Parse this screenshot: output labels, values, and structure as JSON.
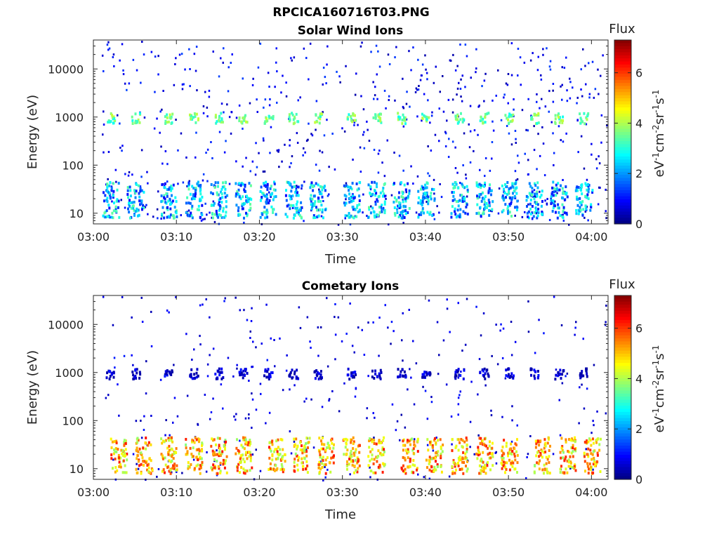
{
  "figure": {
    "title": "RPCICA160716T03.PNG"
  },
  "colorbar": {
    "title": "Flux",
    "ticks": [
      "0",
      "2",
      "4",
      "6"
    ],
    "range": [
      0,
      7.3
    ],
    "colormap": "jet"
  },
  "chart_data": [
    {
      "type": "heatmap",
      "title": "Solar Wind Ions",
      "xlabel": "Time",
      "ylabel": "Energy (eV)",
      "x_ticks": [
        "03:00",
        "03:10",
        "03:20",
        "03:30",
        "03:40",
        "03:50",
        "04:00"
      ],
      "x_range": [
        "03:00",
        "04:02"
      ],
      "y_scale": "log",
      "y_ticks": [
        "10",
        "100",
        "1000",
        "10000"
      ],
      "y_range": [
        6,
        40000
      ],
      "series": [
        {
          "name": "solar wind peak near 1000 eV",
          "energy_eV": 1000,
          "flux": 3.5,
          "times": [
            "03:02",
            "03:05",
            "03:09",
            "03:12",
            "03:15",
            "03:18",
            "03:21",
            "03:24",
            "03:27",
            "03:31",
            "03:34",
            "03:37",
            "03:40",
            "03:44",
            "03:47",
            "03:50",
            "03:53",
            "03:56",
            "03:59"
          ]
        },
        {
          "name": "low-energy ions near 20 eV",
          "energy_eV": 20,
          "flux": 2.2,
          "times": [
            "03:02",
            "03:05",
            "03:09",
            "03:12",
            "03:15",
            "03:18",
            "03:21",
            "03:24",
            "03:27",
            "03:31",
            "03:34",
            "03:37",
            "03:40",
            "03:44",
            "03:47",
            "03:50",
            "03:53",
            "03:56",
            "03:59"
          ]
        }
      ]
    },
    {
      "type": "heatmap",
      "title": "Cometary Ions",
      "xlabel": "Time",
      "ylabel": "Energy (eV)",
      "x_ticks": [
        "03:00",
        "03:10",
        "03:20",
        "03:30",
        "03:40",
        "03:50",
        "04:00"
      ],
      "x_range": [
        "03:00",
        "04:02"
      ],
      "y_scale": "log",
      "y_ticks": [
        "10",
        "100",
        "1000",
        "10000"
      ],
      "y_range": [
        6,
        40000
      ],
      "series": [
        {
          "name": "cometary ions near 20 eV",
          "energy_eV": 20,
          "flux": 5.0,
          "times": [
            "03:03",
            "03:06",
            "03:09",
            "03:12",
            "03:15",
            "03:18",
            "03:22",
            "03:25",
            "03:28",
            "03:31",
            "03:34",
            "03:38",
            "03:41",
            "03:44",
            "03:47",
            "03:50",
            "03:54",
            "03:57",
            "04:00"
          ]
        },
        {
          "name": "weak signal near 1000 eV",
          "energy_eV": 1000,
          "flux": 0.4,
          "times": [
            "03:02",
            "03:05",
            "03:09",
            "03:12",
            "03:15",
            "03:18",
            "03:21",
            "03:24",
            "03:27",
            "03:31",
            "03:34",
            "03:37",
            "03:40",
            "03:44",
            "03:47",
            "03:50",
            "03:53",
            "03:56",
            "03:59"
          ]
        }
      ]
    }
  ]
}
